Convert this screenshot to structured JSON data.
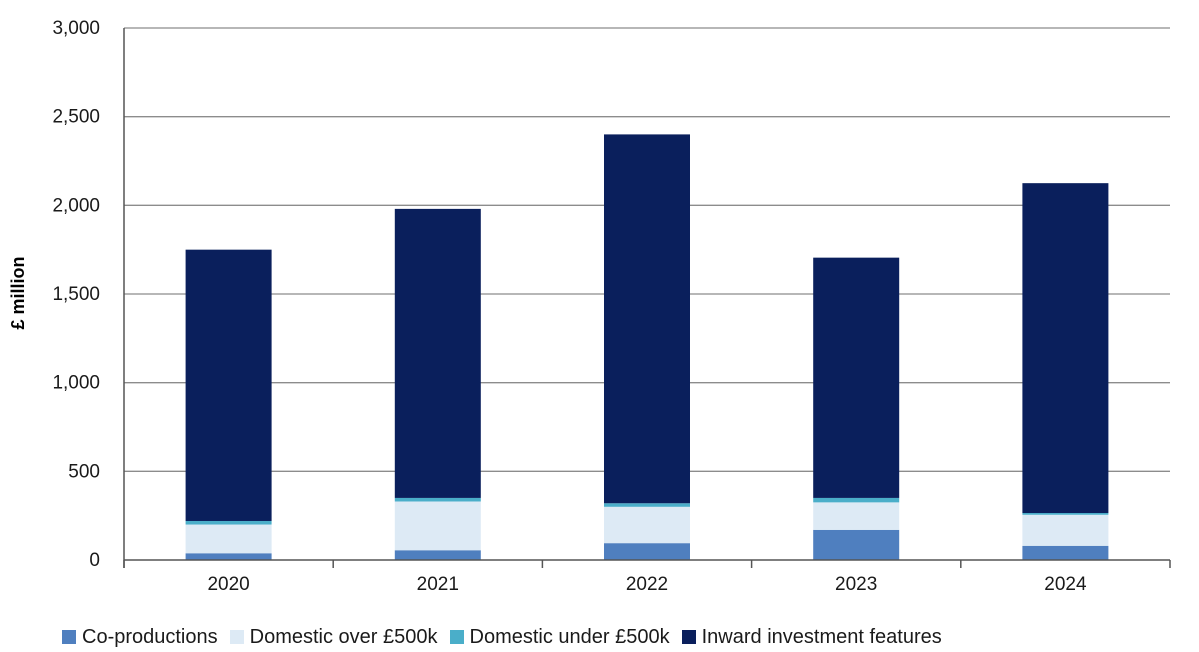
{
  "chart_data": {
    "type": "bar",
    "stacked": true,
    "categories": [
      "2020",
      "2021",
      "2022",
      "2023",
      "2024"
    ],
    "series": [
      {
        "name": "Co-productions",
        "color": "#4f7fbf",
        "values": [
          38,
          55,
          95,
          170,
          80
        ]
      },
      {
        "name": "Domestic over £500k",
        "color": "#ddeaf5",
        "values": [
          162,
          275,
          205,
          155,
          175
        ]
      },
      {
        "name": "Domestic under £500k",
        "color": "#4aaec9",
        "values": [
          20,
          20,
          20,
          25,
          10
        ]
      },
      {
        "name": "Inward investment features",
        "color": "#0a1f5c",
        "values": [
          1530,
          1630,
          2080,
          1355,
          1860
        ]
      }
    ],
    "ylabel": "£ million",
    "xlabel": "",
    "ylim": [
      0,
      3000
    ],
    "yticks": [
      0,
      500,
      1000,
      1500,
      2000,
      2500,
      3000
    ],
    "ytick_labels": [
      "0",
      "500",
      "1,000",
      "1,500",
      "2,000",
      "2,500",
      "3,000"
    ],
    "grid": true,
    "legend_position": "bottom"
  }
}
